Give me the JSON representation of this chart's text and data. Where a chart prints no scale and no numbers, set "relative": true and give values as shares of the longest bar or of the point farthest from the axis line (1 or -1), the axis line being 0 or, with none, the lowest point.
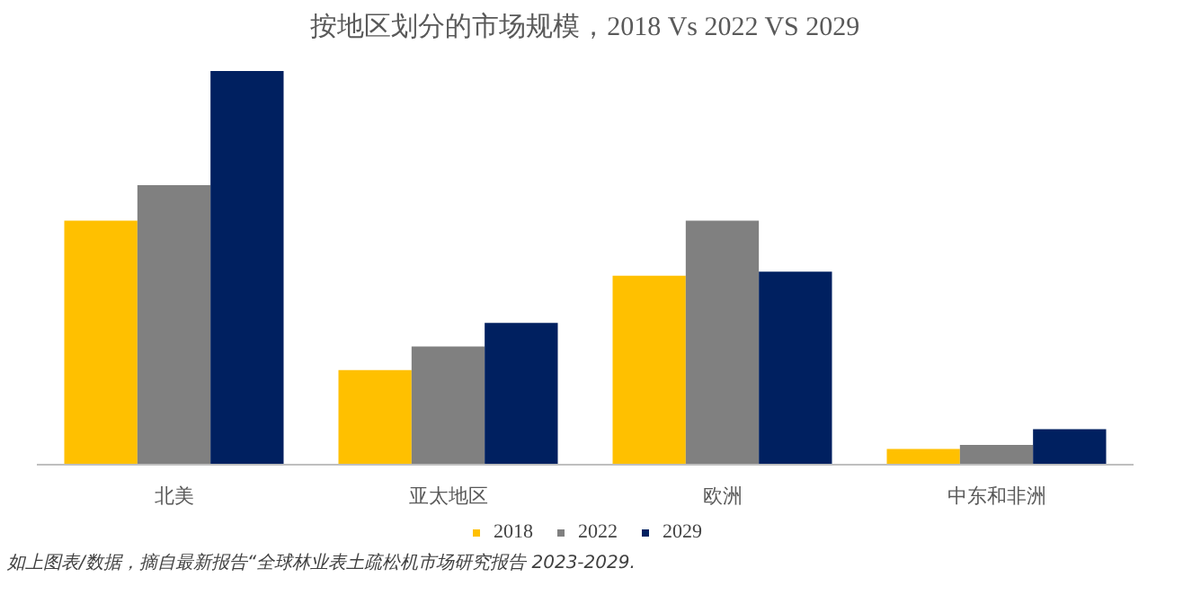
{
  "chart_data": {
    "type": "bar",
    "title": "按地区划分的市场规模，2018 Vs 2022 VS 2029",
    "categories": [
      "北美",
      "亚太地区",
      "欧洲",
      "中东和非洲"
    ],
    "relative": true,
    "series": [
      {
        "name": "2018",
        "color": "#ffc000",
        "values": [
          0.62,
          0.24,
          0.48,
          0.04
        ]
      },
      {
        "name": "2022",
        "color": "#808080",
        "values": [
          0.71,
          0.3,
          0.62,
          0.05
        ]
      },
      {
        "name": "2029",
        "color": "#002060",
        "values": [
          1,
          0.36,
          0.49,
          0.09
        ]
      }
    ],
    "legend": "bottom",
    "grid": false,
    "annotations": [
      "如上图表/数据，摘自最新报告“全球林业表土疏松机市场研究报告 2023-2029."
    ]
  }
}
